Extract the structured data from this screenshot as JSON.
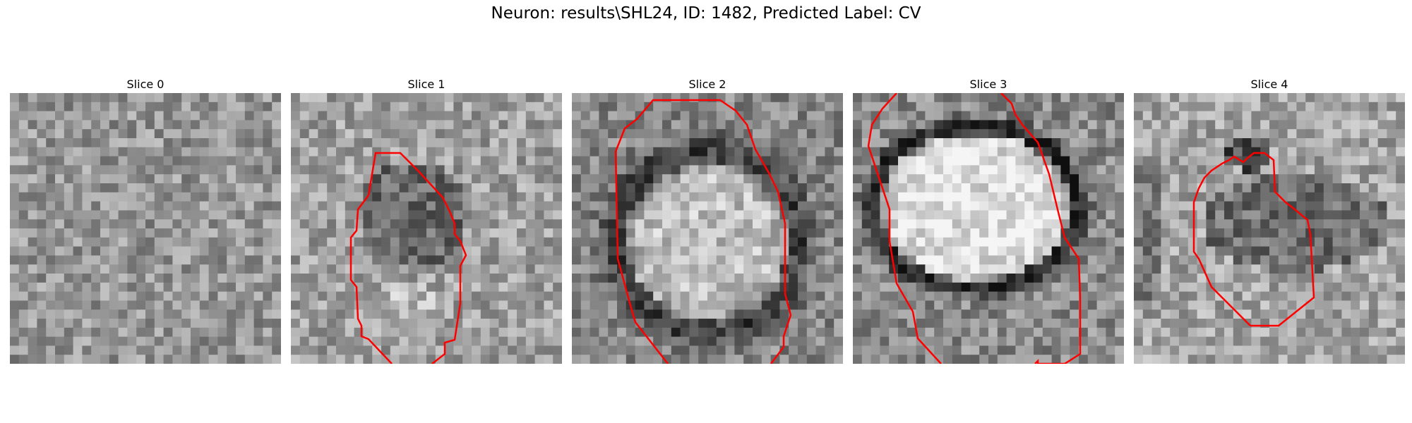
{
  "figure": {
    "title": "Neuron: results\\SHL24, ID: 1482, Predicted Label: CV"
  },
  "panels": [
    {
      "title": "Slice 0",
      "has_outline": false
    },
    {
      "title": "Slice 1",
      "has_outline": true
    },
    {
      "title": "Slice 2",
      "has_outline": true
    },
    {
      "title": "Slice 3",
      "has_outline": true
    },
    {
      "title": "Slice 4",
      "has_outline": true
    }
  ],
  "colors": {
    "outline": "#ff0000",
    "background": "#ffffff"
  },
  "image": {
    "colormap": "grayscale",
    "grid": "30x30"
  }
}
